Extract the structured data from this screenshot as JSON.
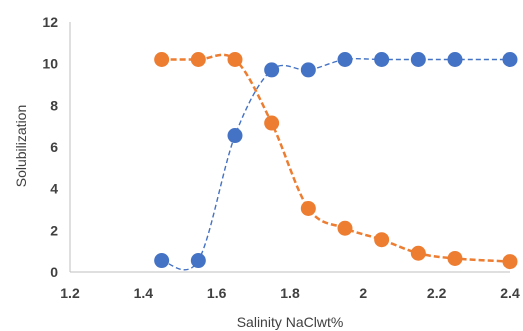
{
  "chart_data": {
    "type": "scatter",
    "title": "",
    "xlabel": "Salinity NaClwt%",
    "ylabel": "Solubilization",
    "xlim": [
      1.2,
      2.4
    ],
    "ylim": [
      0,
      12
    ],
    "xticks": [
      "1.2",
      "1.4",
      "1.6",
      "1.8",
      "2",
      "2.2",
      "2.4"
    ],
    "yticks": [
      "0",
      "2",
      "4",
      "6",
      "8",
      "10",
      "12"
    ],
    "grid": false,
    "legend": "none",
    "series": [
      {
        "color": "#4472c4",
        "line_style": "dashed-smooth",
        "x": [
          1.45,
          1.55,
          1.65,
          1.75,
          1.85,
          1.95,
          2.05,
          2.15,
          2.25,
          2.4
        ],
        "y": [
          0.55,
          0.55,
          6.55,
          9.7,
          9.7,
          10.2,
          10.2,
          10.2,
          10.2,
          10.2
        ]
      },
      {
        "color": "#ed7d31",
        "line_style": "dashed-smooth",
        "x": [
          1.45,
          1.55,
          1.65,
          1.75,
          1.85,
          1.95,
          2.05,
          2.15,
          2.25,
          2.4
        ],
        "y": [
          10.2,
          10.2,
          10.2,
          7.15,
          3.05,
          2.1,
          1.55,
          0.9,
          0.65,
          0.5
        ]
      }
    ]
  }
}
